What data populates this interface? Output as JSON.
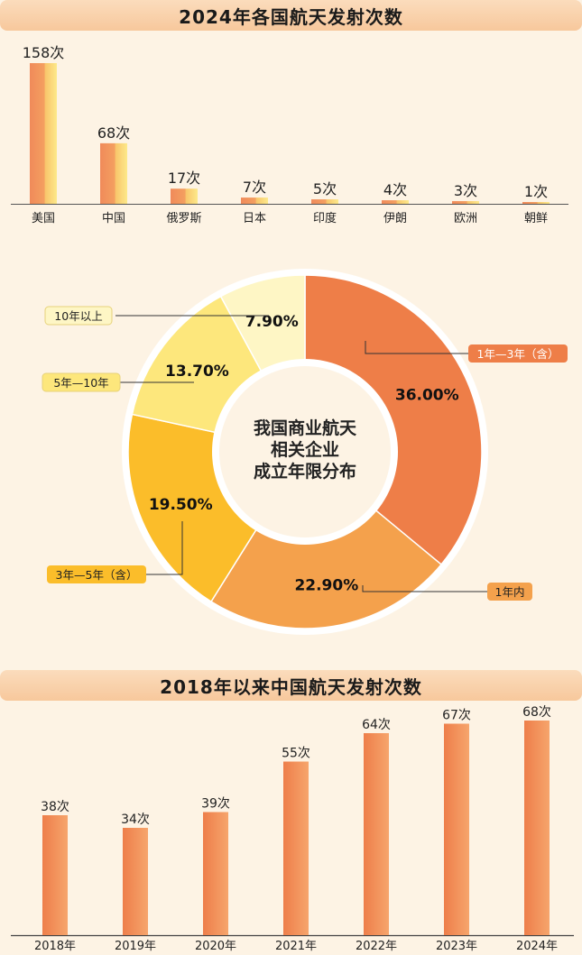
{
  "chart_data": [
    {
      "type": "bar",
      "title": "2024年各国航天发射次数",
      "categories": [
        "美国",
        "中国",
        "俄罗斯",
        "日本",
        "印度",
        "伊朗",
        "欧洲",
        "朝鲜"
      ],
      "values": [
        158,
        68,
        17,
        7,
        5,
        4,
        3,
        1
      ],
      "value_labels": [
        "158次",
        "68次",
        "17次",
        "7次",
        "5次",
        "4次",
        "3次",
        "1次"
      ],
      "grid": false
    },
    {
      "type": "pie",
      "title": "我国商业航天相关企业成立年限分布",
      "center_label": [
        "我国商业航天",
        "相关企业",
        "成立年限分布"
      ],
      "categories": [
        "1年—3年（含）",
        "1年内",
        "3年—5年（含）",
        "5年—10年",
        "10年以上"
      ],
      "values": [
        36.0,
        22.9,
        19.5,
        13.7,
        7.9
      ],
      "value_labels": [
        "36.00%",
        "22.90%",
        "19.50%",
        "13.70%",
        "7.90%"
      ],
      "colors": [
        "#ee7e48",
        "#f4a14c",
        "#fbbd2a",
        "#fde77c",
        "#fef6c5"
      ]
    },
    {
      "type": "bar",
      "title": "2018年以来中国航天发射次数",
      "categories": [
        "2018年",
        "2019年",
        "2020年",
        "2021年",
        "2022年",
        "2023年",
        "2024年"
      ],
      "values": [
        38,
        34,
        39,
        55,
        64,
        67,
        68
      ],
      "value_labels": [
        "38次",
        "34次",
        "39次",
        "55次",
        "64次",
        "67次",
        "68次"
      ],
      "grid": false
    }
  ]
}
